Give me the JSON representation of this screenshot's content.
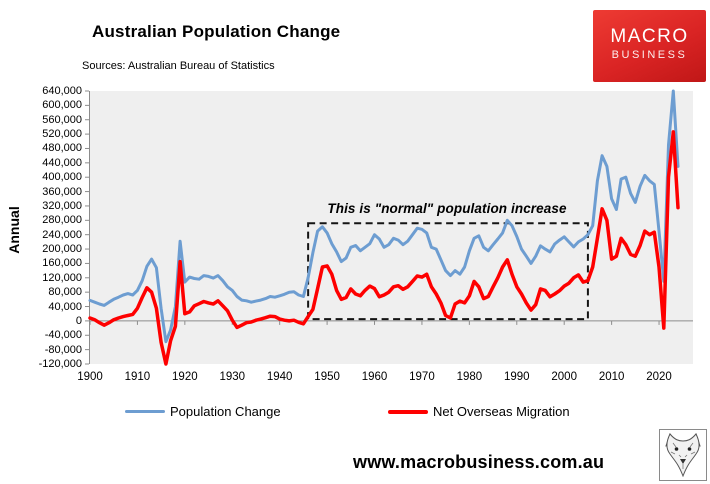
{
  "header": {
    "title": "Australian Population Change",
    "subtitle": "Sources: Australian Bureau of Statistics",
    "logo_line1": "MACRO",
    "logo_line2": "BUSINESS",
    "logo_color": "#d92323"
  },
  "footer": {
    "url": "www.macrobusiness.com.au",
    "logo_icon": "wolf-head-logo"
  },
  "chart_data": {
    "type": "line",
    "title": "Australian Population Change",
    "xlabel": "",
    "ylabel": "Annual",
    "ylim": [
      -120000,
      640000
    ],
    "y_tick_step": 40000,
    "y_tick_labels": [
      "640,000",
      "600,000",
      "560,000",
      "520,000",
      "480,000",
      "440,000",
      "400,000",
      "360,000",
      "320,000",
      "280,000",
      "240,000",
      "200,000",
      "160,000",
      "120,000",
      "80,000",
      "40,000",
      "0",
      "-40,000",
      "-80,000",
      "-120,000"
    ],
    "x_start_year": 1900,
    "x_end_year": 2024,
    "x_tick_labels": [
      "1900",
      "1910",
      "1920",
      "1930",
      "1940",
      "1950",
      "1960",
      "1970",
      "1980",
      "1990",
      "2000",
      "2010",
      "2020"
    ],
    "grid": "none",
    "plot_bg": "#efefef",
    "axis_color": "#8c8c8c",
    "legend_position": "bottom",
    "series": [
      {
        "name": "Population Change",
        "color": "#6d9dd1",
        "values": [
          57000,
          52000,
          47000,
          43000,
          52000,
          60000,
          66000,
          72000,
          76000,
          72000,
          85000,
          112000,
          152000,
          172000,
          148000,
          35000,
          -58000,
          -25000,
          40000,
          222000,
          108000,
          122000,
          118000,
          116000,
          126000,
          124000,
          119000,
          126000,
          112000,
          95000,
          85000,
          68000,
          58000,
          56000,
          52000,
          55000,
          58000,
          62000,
          68000,
          66000,
          70000,
          74000,
          80000,
          81000,
          72000,
          68000,
          120000,
          190000,
          250000,
          262000,
          245000,
          215000,
          192000,
          165000,
          175000,
          205000,
          210000,
          195000,
          205000,
          215000,
          240000,
          228000,
          205000,
          212000,
          230000,
          225000,
          212000,
          222000,
          240000,
          258000,
          255000,
          245000,
          205000,
          200000,
          170000,
          140000,
          126000,
          140000,
          130000,
          150000,
          195000,
          230000,
          237000,
          205000,
          195000,
          212000,
          228000,
          245000,
          280000,
          265000,
          235000,
          200000,
          180000,
          160000,
          180000,
          209000,
          200000,
          192000,
          214000,
          225000,
          234000,
          220000,
          206000,
          220000,
          228000,
          240000,
          265000,
          390000,
          460000,
          430000,
          340000,
          310000,
          395000,
          400000,
          355000,
          330000,
          375000,
          405000,
          390000,
          380000,
          250000,
          110000,
          490000,
          640000,
          430000
        ]
      },
      {
        "name": "Net Overseas Migration",
        "color": "#fe0000",
        "values": [
          8000,
          3000,
          -5000,
          -12000,
          -5000,
          3000,
          8000,
          12000,
          15000,
          18000,
          35000,
          65000,
          92000,
          80000,
          35000,
          -60000,
          -120000,
          -55000,
          -15000,
          165000,
          20000,
          25000,
          42000,
          48000,
          54000,
          50000,
          47000,
          56000,
          42000,
          28000,
          2000,
          -18000,
          -12000,
          -5000,
          -3000,
          2000,
          5000,
          9000,
          13000,
          12000,
          5000,
          2000,
          0,
          2000,
          -4000,
          -8000,
          12000,
          32000,
          90000,
          150000,
          153000,
          130000,
          85000,
          60000,
          65000,
          89000,
          75000,
          70000,
          85000,
          97000,
          90000,
          67000,
          72000,
          80000,
          95000,
          98000,
          88000,
          95000,
          110000,
          125000,
          122000,
          130000,
          95000,
          75000,
          50000,
          15000,
          8000,
          47000,
          55000,
          50000,
          70000,
          110000,
          95000,
          62000,
          68000,
          95000,
          120000,
          150000,
          170000,
          130000,
          95000,
          75000,
          50000,
          30000,
          45000,
          89000,
          85000,
          67000,
          75000,
          84000,
          97000,
          105000,
          120000,
          128000,
          108000,
          112000,
          150000,
          230000,
          312000,
          280000,
          172000,
          180000,
          230000,
          212000,
          185000,
          180000,
          210000,
          250000,
          240000,
          247000,
          150000,
          -20000,
          400000,
          526000,
          315000
        ]
      }
    ],
    "annotation": {
      "text": "This is \"normal\" population increase",
      "box_year_start": 1946,
      "box_year_end": 2005,
      "box_value_top": 272000,
      "box_value_bottom": 5000,
      "box_style": "black-dashed"
    }
  }
}
